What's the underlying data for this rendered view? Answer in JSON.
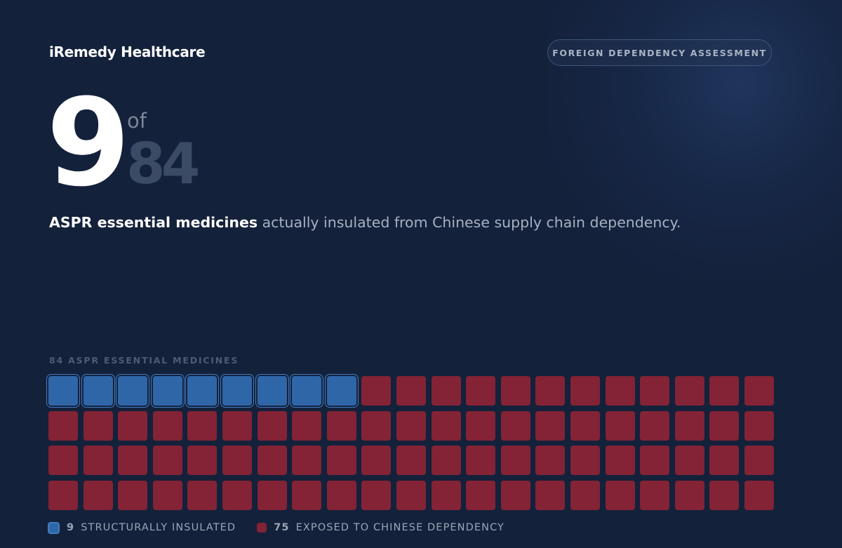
{
  "brand": "iRemedy Healthcare",
  "badge": "FOREIGN DEPENDENCY ASSESSMENT",
  "headline": {
    "count": "9",
    "of": "of",
    "total": "84"
  },
  "description": {
    "emphasis": "ASPR essential medicines",
    "rest": " actually insulated from Chinese supply chain dependency."
  },
  "grid_label": "84 ASPR ESSENTIAL MEDICINES",
  "legend": {
    "insulated": {
      "count": "9",
      "label": "STRUCTURALLY INSULATED"
    },
    "exposed": {
      "count": "75",
      "label": "EXPOSED TO CHINESE DEPENDENCY"
    }
  },
  "colors": {
    "background": "#14213b",
    "insulated": "#2f66a8",
    "exposed": "#832335"
  },
  "chart_data": {
    "type": "waffle",
    "total": 84,
    "columns": 21,
    "rows": 4,
    "series": [
      {
        "name": "STRUCTURALLY INSULATED",
        "value": 9,
        "color": "#2f66a8"
      },
      {
        "name": "EXPOSED TO CHINESE DEPENDENCY",
        "value": 75,
        "color": "#832335"
      }
    ]
  }
}
